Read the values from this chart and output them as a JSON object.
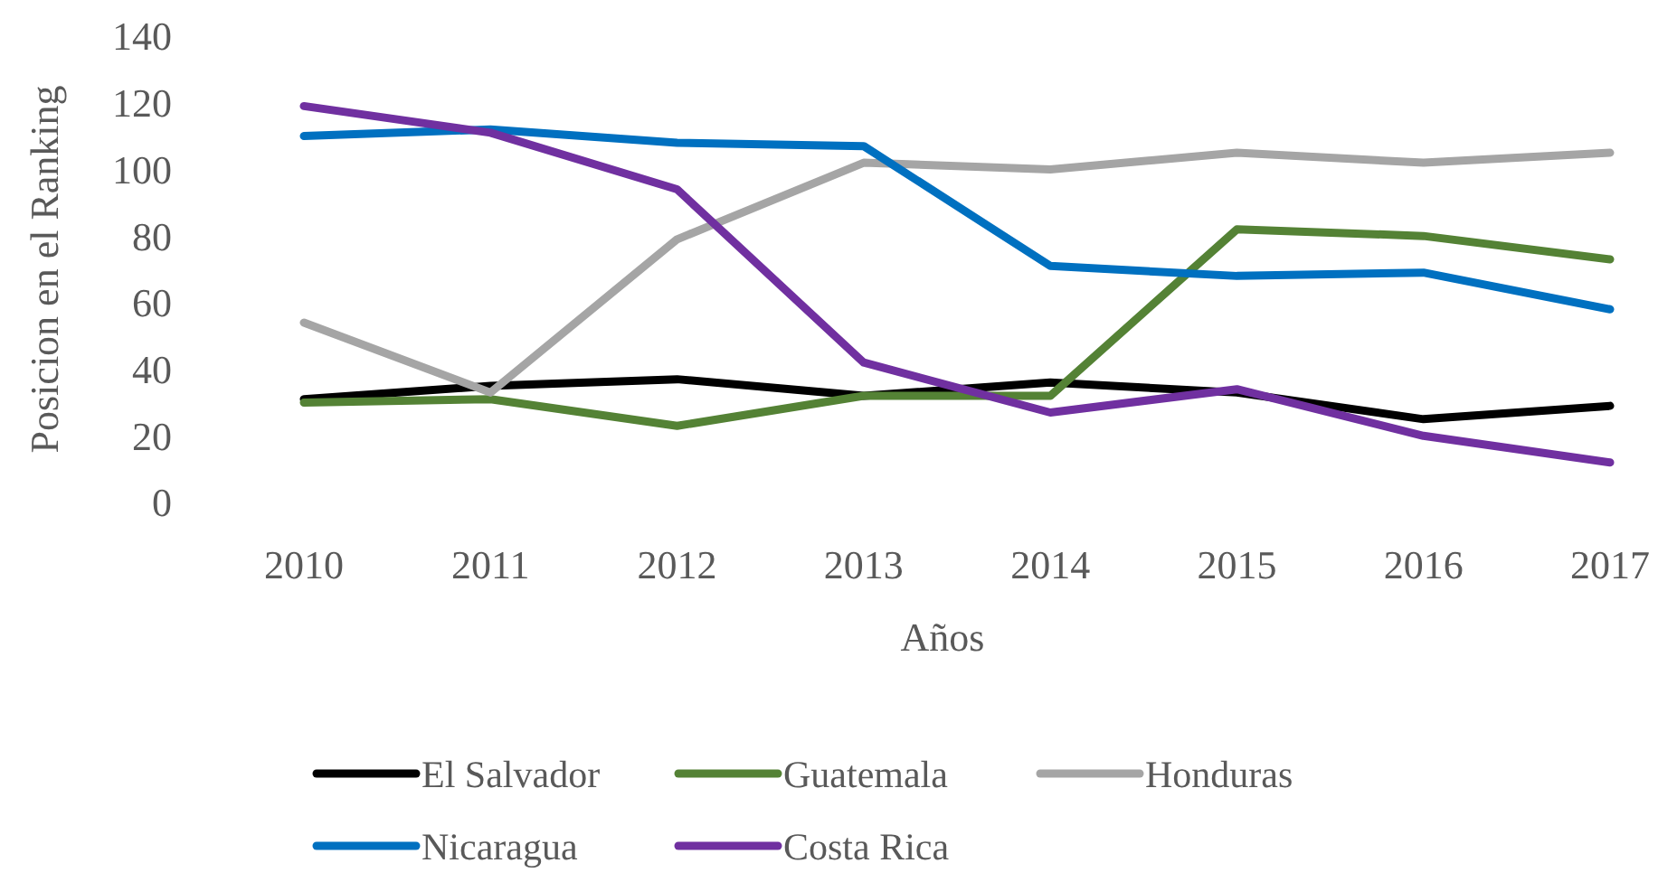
{
  "chart_data": {
    "type": "line",
    "xlabel": "Años",
    "ylabel": "Posicion en el Ranking",
    "categories": [
      "2010",
      "2011",
      "2012",
      "2013",
      "2014",
      "2015",
      "2016",
      "2017"
    ],
    "series": [
      {
        "name": "El Salvador",
        "color": "#000000",
        "values": [
          31,
          35,
          37,
          32,
          36,
          33,
          25,
          29
        ]
      },
      {
        "name": "Guatemala",
        "color": "#548235",
        "values": [
          30,
          31,
          23,
          32,
          32,
          82,
          80,
          73
        ]
      },
      {
        "name": "Honduras",
        "color": "#a5a5a5",
        "values": [
          54,
          33,
          79,
          102,
          100,
          105,
          102,
          105
        ]
      },
      {
        "name": "Nicaragua",
        "color": "#0070c0",
        "values": [
          110,
          112,
          108,
          107,
          71,
          68,
          69,
          58
        ]
      },
      {
        "name": "Costa Rica",
        "color": "#7030a0",
        "values": [
          119,
          111,
          94,
          42,
          27,
          34,
          20,
          12
        ]
      }
    ],
    "ylim": [
      0,
      140
    ],
    "yticks": [
      0,
      20,
      40,
      60,
      80,
      100,
      120,
      140
    ],
    "grid": false,
    "legend": "bottom",
    "marker": "none",
    "line_style": "solid"
  }
}
